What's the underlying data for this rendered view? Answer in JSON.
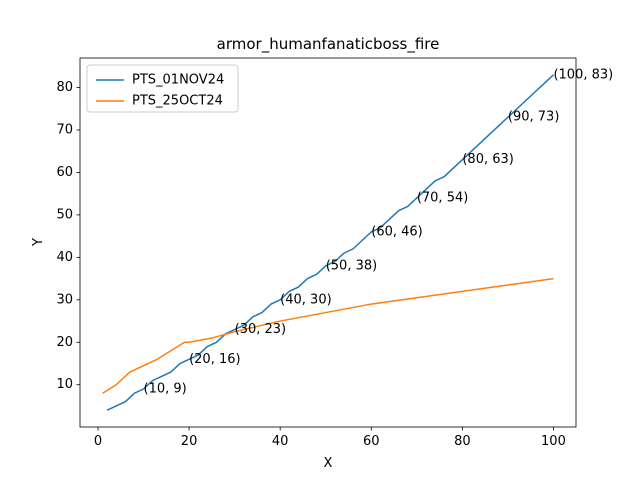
{
  "chart_data": {
    "type": "line",
    "title": "armor_humanfanaticboss_fire",
    "xlabel": "X",
    "ylabel": "Y",
    "xlim": [
      -3.95,
      104.95
    ],
    "ylim": [
      0.05,
      86.95
    ],
    "xticks": [
      0,
      20,
      40,
      60,
      80,
      100
    ],
    "yticks": [
      10,
      20,
      30,
      40,
      50,
      60,
      70,
      80
    ],
    "grid": false,
    "legend_position": "top-left",
    "series": [
      {
        "name": "PTS_01NOV24",
        "color": "#1f77b4",
        "x": [
          2,
          4,
          6,
          8,
          10,
          12,
          14,
          16,
          18,
          20,
          22,
          24,
          26,
          28,
          30,
          32,
          34,
          36,
          38,
          40,
          42,
          44,
          46,
          48,
          50,
          52,
          54,
          56,
          58,
          60,
          62,
          64,
          66,
          68,
          70,
          72,
          74,
          76,
          78,
          80,
          82,
          84,
          86,
          88,
          90,
          92,
          94,
          96,
          98,
          100
        ],
        "y": [
          4,
          5,
          6,
          8,
          9,
          11,
          12,
          13,
          15,
          16,
          17,
          19,
          20,
          22,
          23,
          24,
          26,
          27,
          29,
          30,
          32,
          33,
          35,
          36,
          38,
          39,
          41,
          42,
          44,
          46,
          47,
          49,
          51,
          52,
          54,
          56,
          58,
          59,
          61,
          63,
          65,
          67,
          69,
          71,
          73,
          75,
          77,
          79,
          81,
          83
        ]
      },
      {
        "name": "PTS_25OCT24",
        "color": "#ff7f0e",
        "x": [
          1,
          4,
          7,
          10,
          13,
          16,
          19,
          20,
          25,
          30,
          40,
          50,
          60,
          70,
          80,
          90,
          100
        ],
        "y": [
          8,
          10,
          13,
          14.5,
          16,
          18,
          20,
          20,
          21,
          22.5,
          25,
          27,
          29,
          30.5,
          32,
          33.5,
          35
        ]
      }
    ],
    "annotations": [
      {
        "text": "(10, 9)",
        "x": 10,
        "y": 9
      },
      {
        "text": "(20, 16)",
        "x": 20,
        "y": 16
      },
      {
        "text": "(30, 23)",
        "x": 30,
        "y": 23
      },
      {
        "text": "(40, 30)",
        "x": 40,
        "y": 30
      },
      {
        "text": "(50, 38)",
        "x": 50,
        "y": 38
      },
      {
        "text": "(60, 46)",
        "x": 60,
        "y": 46
      },
      {
        "text": "(70, 54)",
        "x": 70,
        "y": 54
      },
      {
        "text": "(80, 63)",
        "x": 80,
        "y": 63
      },
      {
        "text": "(90, 73)",
        "x": 90,
        "y": 73
      },
      {
        "text": "(100, 83)",
        "x": 100,
        "y": 83
      }
    ]
  }
}
